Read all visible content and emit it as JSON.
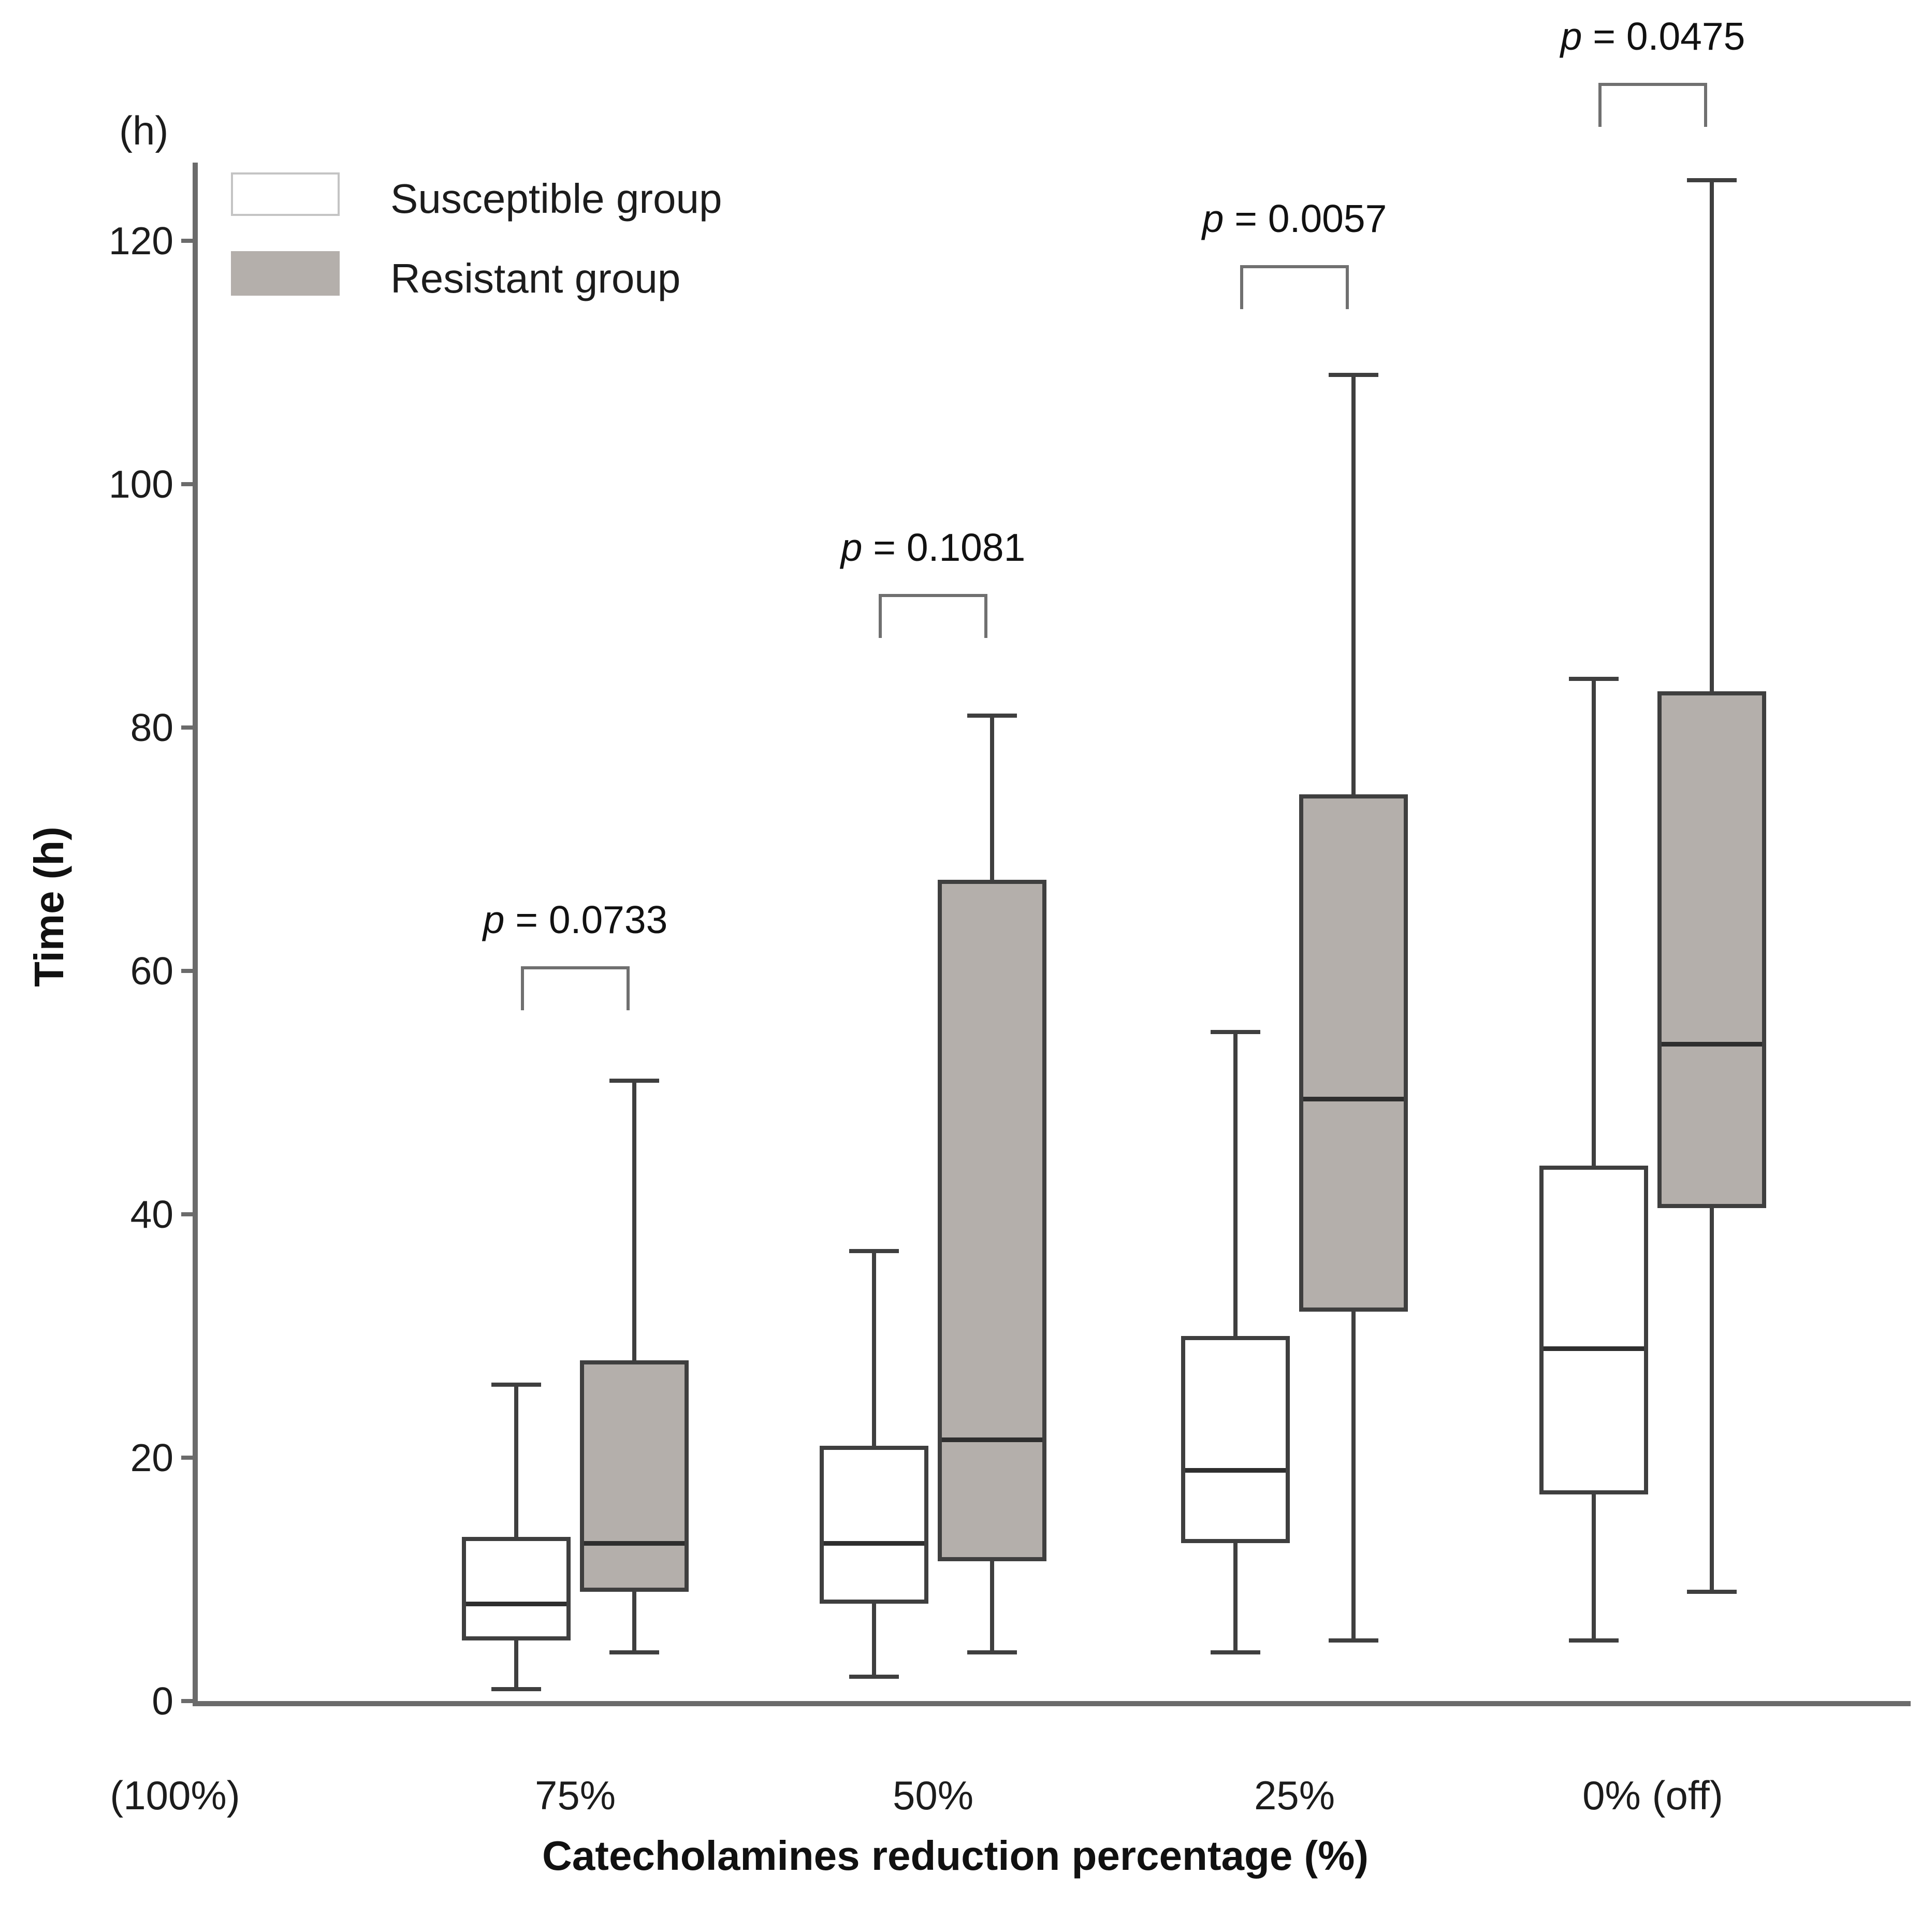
{
  "figure": {
    "y_axis_unit_label": "(h)",
    "y_axis_title": "Time (h)",
    "x_axis_title": "Catecholamines reduction percentage (%)",
    "baseline_label": "(100%)"
  },
  "legend": {
    "items": [
      {
        "label": "Susceptible group",
        "fill": "#ffffff",
        "border": "#c4c4c4"
      },
      {
        "label": "Resistant group",
        "fill": "#b4afab",
        "border": "#b4afab"
      }
    ]
  },
  "colors": {
    "box_border": "#3f3f3f",
    "median": "#2e2e2e",
    "axis": "#6b6b6b",
    "bracket": "#707070",
    "resistant_fill": "#b4afab",
    "susceptible_fill": "#ffffff"
  },
  "chart_data": {
    "type": "boxplot",
    "title": "",
    "xlabel": "Catecholamines reduction percentage (%)",
    "ylabel": "Time (h)",
    "y_unit": "(h)",
    "ylim": [
      0,
      135
    ],
    "yticks": [
      0,
      20,
      40,
      60,
      80,
      100,
      120
    ],
    "grid": false,
    "legend_position": "top-left",
    "baseline_category": "(100%)",
    "categories": [
      "75%",
      "50%",
      "25%",
      "0% (off)"
    ],
    "series": [
      {
        "name": "Susceptible group",
        "fill": "#ffffff",
        "boxes": [
          {
            "whisker_low": 1,
            "q1": 5,
            "median": 8,
            "q3": 13.5,
            "whisker_high": 26
          },
          {
            "whisker_low": 2,
            "q1": 8,
            "median": 13,
            "q3": 21,
            "whisker_high": 37
          },
          {
            "whisker_low": 4,
            "q1": 13,
            "median": 19,
            "q3": 30,
            "whisker_high": 55
          },
          {
            "whisker_low": 5,
            "q1": 17,
            "median": 29,
            "q3": 44,
            "whisker_high": 84
          }
        ]
      },
      {
        "name": "Resistant group",
        "fill": "#b4afab",
        "boxes": [
          {
            "whisker_low": 4,
            "q1": 9,
            "median": 13,
            "q3": 28,
            "whisker_high": 51
          },
          {
            "whisker_low": 4,
            "q1": 11.5,
            "median": 21.5,
            "q3": 67.5,
            "whisker_high": 81
          },
          {
            "whisker_low": 5,
            "q1": 32,
            "median": 49.5,
            "q3": 74.5,
            "whisker_high": 109
          },
          {
            "whisker_low": 9,
            "q1": 40.5,
            "median": 54,
            "q3": 83,
            "whisker_high": 125
          }
        ]
      }
    ],
    "comparisons": [
      {
        "category": "75%",
        "label": "p = 0.0733",
        "bracket_y": 60.4
      },
      {
        "category": "50%",
        "label": "p = 0.1081",
        "bracket_y": 91
      },
      {
        "category": "25%",
        "label": "p = 0.0057",
        "bracket_y": 118
      },
      {
        "category": "0% (off)",
        "label": "p = 0.0475",
        "bracket_y": 133
      }
    ]
  }
}
